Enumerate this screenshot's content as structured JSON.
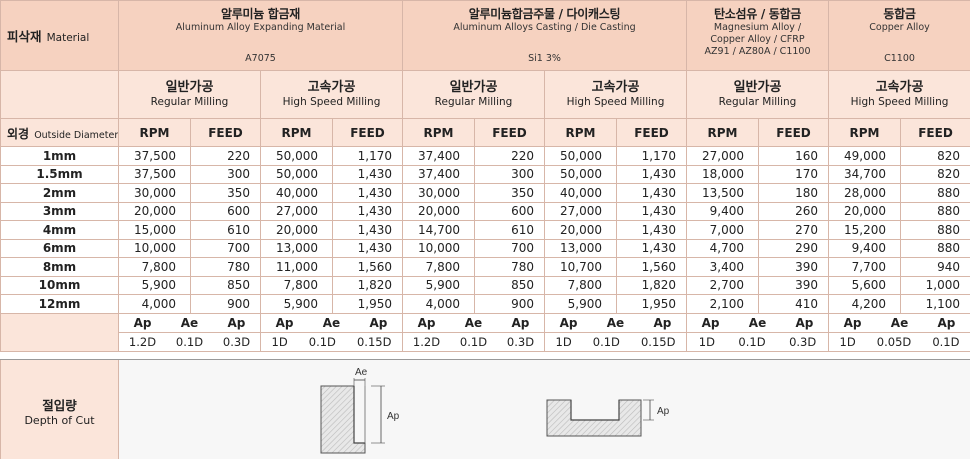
{
  "header": {
    "material_ko": "피삭재",
    "material_en": "Material",
    "od_ko": "외경",
    "od_en": "Outside Diameter"
  },
  "materials": [
    {
      "ko": "알루미늄 합금재",
      "en": "Aluminum Alloy Expanding Material",
      "grade": "A7075"
    },
    {
      "ko": "알루미늄합금주물 / 다이캐스팅",
      "en": "Aluminum Alloys Casting / Die Casting",
      "grade": "Si1 3%"
    },
    {
      "ko": "탄소섬유 / 동합금",
      "en1": "Magnesium Alloy /",
      "en2": "Copper Alloy / CFRP",
      "en3": "AZ91 / AZ80A / C1100"
    },
    {
      "ko": "동합금",
      "en": "Copper Alloy",
      "grade": "C1100"
    }
  ],
  "milling": {
    "regular_ko": "일반가공",
    "regular_en": "Regular Milling",
    "high_ko": "고속가공",
    "high_en": "High Speed Milling"
  },
  "columns": {
    "rpm": "RPM",
    "feed": "FEED",
    "ap": "Ap",
    "ae": "Ae"
  },
  "rows": [
    {
      "d": "1mm",
      "v": [
        "37,500",
        "220",
        "50,000",
        "1,170",
        "37,400",
        "220",
        "50,000",
        "1,170",
        "27,000",
        "160",
        "49,000",
        "820"
      ]
    },
    {
      "d": "1.5mm",
      "v": [
        "37,500",
        "300",
        "50,000",
        "1,430",
        "37,400",
        "300",
        "50,000",
        "1,430",
        "18,000",
        "170",
        "34,700",
        "820"
      ]
    },
    {
      "d": "2mm",
      "v": [
        "30,000",
        "350",
        "40,000",
        "1,430",
        "30,000",
        "350",
        "40,000",
        "1,430",
        "13,500",
        "180",
        "28,000",
        "880"
      ]
    },
    {
      "d": "3mm",
      "v": [
        "20,000",
        "600",
        "27,000",
        "1,430",
        "20,000",
        "600",
        "27,000",
        "1,430",
        "9,400",
        "260",
        "20,000",
        "880"
      ]
    },
    {
      "d": "4mm",
      "v": [
        "15,000",
        "610",
        "20,000",
        "1,430",
        "14,700",
        "610",
        "20,000",
        "1,430",
        "7,000",
        "270",
        "15,200",
        "880"
      ]
    },
    {
      "d": "6mm",
      "v": [
        "10,000",
        "700",
        "13,000",
        "1,430",
        "10,000",
        "700",
        "13,000",
        "1,430",
        "4,700",
        "290",
        "9,400",
        "880"
      ]
    },
    {
      "d": "8mm",
      "v": [
        "7,800",
        "780",
        "11,000",
        "1,560",
        "7,800",
        "780",
        "10,700",
        "1,560",
        "3,400",
        "390",
        "7,700",
        "940"
      ]
    },
    {
      "d": "10mm",
      "v": [
        "5,900",
        "850",
        "7,800",
        "1,820",
        "5,900",
        "850",
        "7,800",
        "1,820",
        "2,700",
        "390",
        "5,600",
        "1,000"
      ]
    },
    {
      "d": "12mm",
      "v": [
        "4,000",
        "900",
        "5,900",
        "1,950",
        "4,000",
        "900",
        "5,900",
        "1,950",
        "2,100",
        "410",
        "4,200",
        "1,100"
      ]
    }
  ],
  "depth_values": [
    {
      "ap": "1.2D",
      "ae": "0.1D",
      "ap2": "0.3D"
    },
    {
      "ap": "1D",
      "ae": "0.1D",
      "ap2": "0.15D"
    },
    {
      "ap": "1.2D",
      "ae": "0.1D",
      "ap2": "0.3D"
    },
    {
      "ap": "1D",
      "ae": "0.1D",
      "ap2": "0.15D"
    },
    {
      "ap": "1D",
      "ae": "0.1D",
      "ap2": "0.3D"
    },
    {
      "ap": "1D",
      "ae": "0.05D",
      "ap2": "0.1D"
    }
  ],
  "depth_of_cut": {
    "ko": "절입량",
    "en": "Depth of Cut",
    "side_ae": "Ae",
    "side_ap": "Ap",
    "slot_ap": "Ap"
  }
}
